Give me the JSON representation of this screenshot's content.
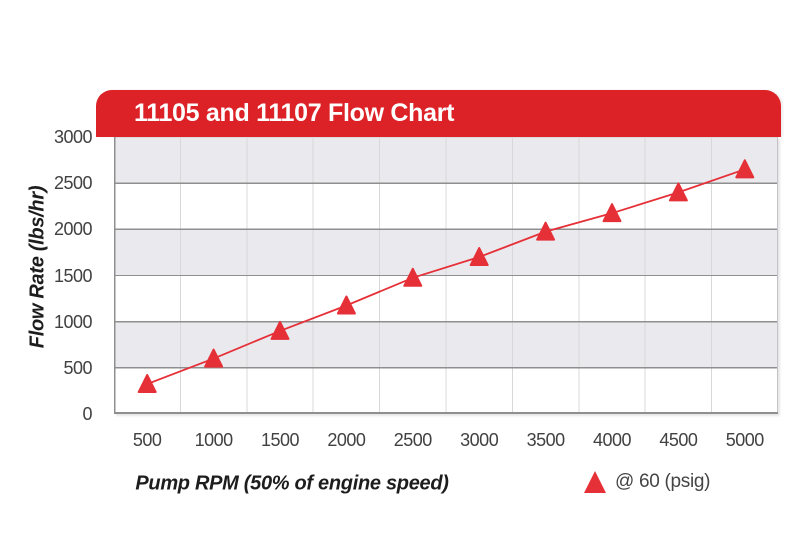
{
  "chart_data": {
    "type": "line",
    "title": "11105 and 11107 Flow Chart",
    "xlabel": "Pump RPM (50% of engine speed)",
    "ylabel": "Flow Rate (lbs/hr)",
    "categories": [
      "500",
      "1000",
      "1500",
      "2000",
      "2500",
      "3000",
      "3500",
      "4000",
      "4500",
      "5000"
    ],
    "series": [
      {
        "name": "@ 60 (psig)",
        "marker": "triangle",
        "values": [
          325,
          600,
          900,
          1175,
          1475,
          1700,
          1975,
          2175,
          2400,
          2650
        ]
      }
    ],
    "ylim": [
      0,
      3000
    ],
    "ytick_step": 500,
    "yticks": [
      "0",
      "500",
      "1000",
      "1500",
      "2000",
      "2500",
      "3000"
    ],
    "grid": {
      "horizontal": true,
      "vertical": true,
      "alternating_bands": true
    },
    "legend_position": "bottom-right"
  },
  "colors": {
    "banner_red": "#DC2127",
    "series_red": "#E63038",
    "band_gray": "#EAEAEE",
    "gridline_dark": "#8F8F8F",
    "gridline_light": "#D8D8DB",
    "tick_label": "#414141",
    "banner_text": "#FFFFFF"
  }
}
